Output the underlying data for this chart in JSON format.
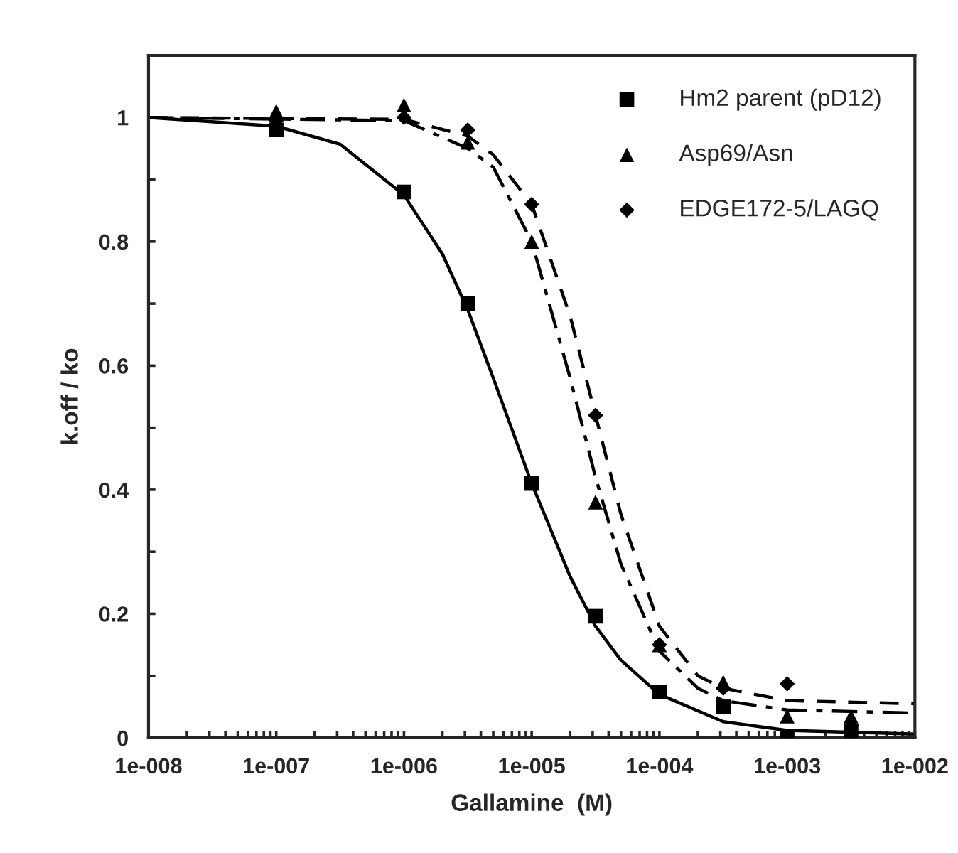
{
  "chart_data": {
    "type": "scatter",
    "xlabel": "Gallamine  (M)",
    "ylabel": "k.off / ko",
    "log": "x",
    "xlim": [
      1e-08,
      0.01
    ],
    "ylim": [
      0,
      1.1
    ],
    "xticks": [
      {
        "value": 1e-08,
        "label": "1e-008"
      },
      {
        "value": 2e-08,
        "label": null
      },
      {
        "value": 3e-08,
        "label": null
      },
      {
        "value": 4e-08,
        "label": null
      },
      {
        "value": 5e-08,
        "label": null
      },
      {
        "value": 6e-08,
        "label": null
      },
      {
        "value": 7e-08,
        "label": null
      },
      {
        "value": 8e-08,
        "label": null
      },
      {
        "value": 9e-08,
        "label": null
      },
      {
        "value": 1e-07,
        "label": "1e-007"
      },
      {
        "value": 2e-07,
        "label": null
      },
      {
        "value": 3e-07,
        "label": null
      },
      {
        "value": 4e-07,
        "label": null
      },
      {
        "value": 5e-07,
        "label": null
      },
      {
        "value": 6e-07,
        "label": null
      },
      {
        "value": 7e-07,
        "label": null
      },
      {
        "value": 8e-07,
        "label": null
      },
      {
        "value": 9e-07,
        "label": null
      },
      {
        "value": 1e-06,
        "label": "1e-006"
      },
      {
        "value": 2e-06,
        "label": null
      },
      {
        "value": 3e-06,
        "label": null
      },
      {
        "value": 4e-06,
        "label": null
      },
      {
        "value": 5e-06,
        "label": null
      },
      {
        "value": 6e-06,
        "label": null
      },
      {
        "value": 7e-06,
        "label": null
      },
      {
        "value": 8e-06,
        "label": null
      },
      {
        "value": 9e-06,
        "label": null
      },
      {
        "value": 1e-05,
        "label": "1e-005"
      },
      {
        "value": 2e-05,
        "label": null
      },
      {
        "value": 3e-05,
        "label": null
      },
      {
        "value": 4e-05,
        "label": null
      },
      {
        "value": 5e-05,
        "label": null
      },
      {
        "value": 6e-05,
        "label": null
      },
      {
        "value": 7e-05,
        "label": null
      },
      {
        "value": 8e-05,
        "label": null
      },
      {
        "value": 9e-05,
        "label": null
      },
      {
        "value": 0.0001,
        "label": "1e-004"
      },
      {
        "value": 0.0002,
        "label": null
      },
      {
        "value": 0.0003,
        "label": null
      },
      {
        "value": 0.0004,
        "label": null
      },
      {
        "value": 0.0005,
        "label": null
      },
      {
        "value": 0.0006,
        "label": null
      },
      {
        "value": 0.0007,
        "label": null
      },
      {
        "value": 0.0008,
        "label": null
      },
      {
        "value": 0.0009,
        "label": null
      },
      {
        "value": 0.001,
        "label": "1e-003"
      },
      {
        "value": 0.002,
        "label": null
      },
      {
        "value": 0.003,
        "label": null
      },
      {
        "value": 0.004,
        "label": null
      },
      {
        "value": 0.005,
        "label": null
      },
      {
        "value": 0.006,
        "label": null
      },
      {
        "value": 0.007,
        "label": null
      },
      {
        "value": 0.008,
        "label": null
      },
      {
        "value": 0.009,
        "label": null
      },
      {
        "value": 0.01,
        "label": "1e-002"
      }
    ],
    "yticks": [
      0,
      {
        "value": 0.1,
        "label": null
      },
      0.2,
      {
        "value": 0.3,
        "label": null
      },
      0.4,
      {
        "value": 0.5,
        "label": null
      },
      0.6,
      {
        "value": 0.7,
        "label": null
      },
      0.8,
      {
        "value": 0.9,
        "label": null
      },
      1
    ],
    "grid": false,
    "legend": "top right",
    "series": [
      {
        "name": "Hm2 parent (pD12)",
        "color": "#000000",
        "marker": "square",
        "x": [
          1e-07,
          1e-06,
          3.16e-06,
          1e-05,
          3.16e-05,
          0.0001,
          0.000316,
          0.001,
          0.00316
        ],
        "values": [
          0.98,
          0.88,
          0.7,
          0.41,
          0.196,
          0.074,
          0.05,
          0,
          0.01
        ]
      },
      {
        "name": "Asp69/Asn",
        "color": "#000000",
        "marker": "triangle",
        "x": [
          1e-07,
          1e-06,
          3.16e-06,
          1e-05,
          3.16e-05,
          0.0001,
          0.000316,
          0.001,
          0.00316
        ],
        "values": [
          1.01,
          1.02,
          0.96,
          0.8,
          0.38,
          0.15,
          0.09,
          0.035,
          0.035
        ]
      },
      {
        "name": "EDGE172-5/LAGQ",
        "color": "#000000",
        "marker": "diamond",
        "x": [
          1e-07,
          1e-06,
          3.16e-06,
          1e-05,
          3.16e-05,
          0.0001,
          0.000316,
          0.001,
          0.00316
        ],
        "values": [
          0.995,
          1.0,
          0.98,
          0.86,
          0.52,
          0.15,
          0.08,
          0.087,
          0.02
        ]
      },
      {
        "type": "line",
        "color": "#000000",
        "line_style": "solid",
        "x": [
          1e-08,
          1e-07,
          3.16e-07,
          1e-06,
          2e-06,
          3.16e-06,
          5e-06,
          1e-05,
          2e-05,
          3.16e-05,
          5e-05,
          0.0001,
          0.000316,
          0.001,
          0.01
        ],
        "values": [
          1.0,
          0.986,
          0.957,
          0.875,
          0.78,
          0.69,
          0.58,
          0.41,
          0.26,
          0.18,
          0.125,
          0.07,
          0.026,
          0.012,
          0.006
        ]
      },
      {
        "type": "line",
        "color": "#000000",
        "line_style": "dashdot",
        "x": [
          1e-08,
          1e-06,
          3.16e-06,
          5e-06,
          1e-05,
          2e-05,
          3.16e-05,
          5e-05,
          0.0001,
          0.0002,
          0.000316,
          0.001,
          0.01
        ],
        "values": [
          1.0,
          0.995,
          0.95,
          0.92,
          0.8,
          0.58,
          0.42,
          0.28,
          0.14,
          0.08,
          0.06,
          0.045,
          0.04
        ]
      },
      {
        "type": "line",
        "color": "#000000",
        "line_style": "dashed",
        "x": [
          1e-08,
          1e-06,
          3.16e-06,
          5e-06,
          1e-05,
          2e-05,
          3.16e-05,
          5e-05,
          0.0001,
          0.0002,
          0.000316,
          0.001,
          0.01
        ],
        "values": [
          1.0,
          0.997,
          0.97,
          0.94,
          0.86,
          0.68,
          0.52,
          0.36,
          0.18,
          0.1,
          0.08,
          0.06,
          0.055
        ]
      }
    ]
  }
}
